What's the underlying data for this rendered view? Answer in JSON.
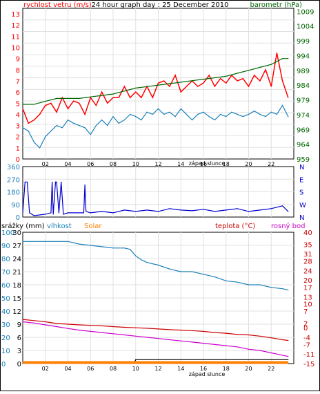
{
  "colors": {
    "wind": "#ff0000",
    "pressure": "#006600",
    "title": "#000000",
    "temp_blue": "#1a7fb8",
    "direction": "#0000cc",
    "rain": "#000000",
    "humidity": "#1a7fb8",
    "solar": "#ff8000",
    "temperature": "#cc0000",
    "dewpoint": "#cc00cc",
    "grid": "#e0e0e0",
    "frame": "#000000"
  },
  "hours": [
    "02",
    "04",
    "06",
    "08",
    "10",
    "12",
    "14",
    "16",
    "18",
    "20",
    "22"
  ],
  "sunset_label": "západ slunce",
  "chart_data": [
    {
      "type": "line",
      "title": "24 hour graph day : 25 December 2010",
      "left_label": "rychlost vetru (m/s)",
      "right_label": "barometr (hPa)",
      "left_ticks": [
        "0",
        "1",
        "2",
        "3",
        "4",
        "5",
        "6",
        "7",
        "8",
        "9",
        "10",
        "11",
        "12",
        "13"
      ],
      "right_ticks": [
        "959",
        "964",
        "969",
        "974",
        "979",
        "984",
        "989",
        "994",
        "999",
        "1004",
        "1009"
      ],
      "ylim_left": [
        0,
        13.5
      ],
      "ylim_right": [
        959,
        1010
      ],
      "xlim": [
        0,
        24
      ],
      "series": [
        {
          "name": "rychlost vetru (m/s)",
          "axis": "left",
          "color": "wind",
          "x": [
            0,
            0.5,
            1,
            1.5,
            2,
            2.5,
            3,
            3.5,
            4,
            4.5,
            5,
            5.5,
            6,
            6.5,
            7,
            7.5,
            8,
            8.5,
            9,
            9.5,
            10,
            10.5,
            11,
            11.5,
            12,
            12.5,
            13,
            13.5,
            14,
            14.5,
            15,
            15.5,
            16,
            16.5,
            17,
            17.5,
            18,
            18.5,
            19,
            19.5,
            20,
            20.5,
            21,
            21.5,
            22,
            22.5,
            23,
            23.5
          ],
          "values": [
            4.5,
            3.2,
            3.5,
            4.0,
            4.8,
            5.0,
            4.2,
            5.5,
            4.5,
            5.2,
            5.0,
            4.0,
            5.5,
            4.8,
            6.0,
            5.0,
            5.5,
            5.5,
            6.5,
            5.5,
            6.0,
            5.5,
            6.5,
            5.5,
            6.8,
            7.0,
            6.5,
            7.5,
            6.0,
            6.5,
            7.0,
            6.5,
            6.8,
            7.5,
            6.5,
            7.2,
            6.8,
            7.5,
            7.0,
            7.2,
            6.5,
            7.5,
            7.0,
            8.0,
            6.5,
            9.5,
            7.0,
            5.5
          ]
        },
        {
          "name": "",
          "axis": "left",
          "color": "temp_blue",
          "x": [
            0,
            0.5,
            1,
            1.5,
            2,
            2.5,
            3,
            3.5,
            4,
            4.5,
            5,
            5.5,
            6,
            6.5,
            7,
            7.5,
            8,
            8.5,
            9,
            9.5,
            10,
            10.5,
            11,
            11.5,
            12,
            12.5,
            13,
            13.5,
            14,
            14.5,
            15,
            15.5,
            16,
            16.5,
            17,
            17.5,
            18,
            18.5,
            19,
            19.5,
            20,
            20.5,
            21,
            21.5,
            22,
            22.5,
            23,
            23.5
          ],
          "values": [
            2.8,
            2.5,
            1.5,
            1.0,
            2.0,
            2.5,
            3.0,
            2.8,
            3.5,
            3.2,
            3.0,
            2.8,
            2.2,
            3.0,
            3.5,
            3.0,
            3.8,
            3.2,
            3.5,
            4.0,
            3.8,
            3.5,
            4.2,
            4.0,
            4.5,
            4.0,
            4.2,
            3.8,
            4.5,
            4.0,
            3.5,
            4.0,
            4.2,
            3.8,
            3.5,
            4.0,
            3.8,
            4.2,
            4.0,
            3.8,
            4.0,
            4.3,
            4.0,
            3.8,
            4.2,
            4.0,
            4.8,
            3.8
          ]
        },
        {
          "name": "barometr (hPa)",
          "axis": "right",
          "color": "pressure",
          "x": [
            0,
            1,
            2,
            3,
            4,
            5,
            6,
            7,
            8,
            9,
            10,
            11,
            12,
            13,
            14,
            15,
            16,
            17,
            18,
            19,
            20,
            21,
            22,
            23,
            23.5
          ],
          "values": [
            977.5,
            977.5,
            978.5,
            979.5,
            979.5,
            979.5,
            980,
            980.5,
            981,
            982,
            983,
            983.5,
            984,
            984.5,
            985,
            985.5,
            986,
            986.5,
            987,
            988,
            989,
            990,
            991,
            993,
            993
          ]
        }
      ]
    },
    {
      "type": "line",
      "left_ticks": [
        "0",
        "90",
        "180",
        "270",
        "360"
      ],
      "right_ticks": [
        "N",
        "W",
        "S",
        "E",
        "N"
      ],
      "ylim": [
        0,
        360
      ],
      "xlim": [
        0,
        24
      ],
      "series": [
        {
          "name": "",
          "color": "direction",
          "x": [
            0,
            0.2,
            0.4,
            0.6,
            0.8,
            1,
            2,
            2.5,
            2.6,
            2.7,
            2.9,
            3.0,
            3.2,
            3.4,
            3.6,
            4,
            5,
            5.4,
            5.5,
            5.6,
            6,
            7,
            8,
            9,
            10,
            11,
            12,
            13,
            14,
            15,
            16,
            17,
            18,
            19,
            20,
            21,
            22,
            23,
            23.5
          ],
          "values": [
            30,
            250,
            250,
            30,
            20,
            10,
            20,
            30,
            250,
            20,
            250,
            250,
            30,
            250,
            20,
            30,
            30,
            30,
            230,
            40,
            30,
            40,
            30,
            50,
            40,
            50,
            40,
            60,
            50,
            45,
            55,
            40,
            50,
            60,
            40,
            50,
            60,
            80,
            40
          ]
        }
      ]
    },
    {
      "type": "line",
      "labels": [
        "srážky (mm)",
        "vlhkost",
        "Solar",
        "teplota (°C)",
        "rosný bod"
      ],
      "left_ticks_rain": [
        "0",
        "10",
        "20",
        "30",
        "40",
        "50",
        "60",
        "70",
        "80",
        "90",
        "100"
      ],
      "left_ticks_hum": [
        "0",
        "3",
        "6",
        "9",
        "12",
        "15",
        "18",
        "21",
        "24",
        "27",
        "30"
      ],
      "right_ticks": [
        "-15",
        "-11",
        "-7",
        "-4",
        "0",
        "2",
        "7",
        "10",
        "13",
        "17",
        "20",
        "24",
        "28",
        "31",
        "35",
        "40"
      ],
      "ylim_rain": [
        0,
        100
      ],
      "ylim_temp": [
        -15,
        40
      ],
      "xlim": [
        0,
        24
      ],
      "series": [
        {
          "name": "vlhkost",
          "axis": "rain",
          "color": "humidity",
          "x": [
            0,
            2,
            4,
            5,
            6,
            7,
            8,
            9,
            9.5,
            10,
            10.5,
            11,
            12,
            13,
            14,
            15,
            16,
            17,
            18,
            19,
            20,
            21,
            22,
            23,
            23.5
          ],
          "values": [
            93,
            93,
            93,
            91,
            90,
            89,
            88,
            88,
            87,
            82,
            79,
            77,
            75,
            72,
            70,
            70,
            68,
            66,
            63,
            62,
            60,
            60,
            58,
            57,
            56
          ]
        },
        {
          "name": "teplota (°C)",
          "axis": "temp",
          "color": "temperature",
          "x": [
            0,
            1,
            2,
            3,
            4,
            5,
            6,
            7,
            8,
            9,
            10,
            11,
            12,
            13,
            14,
            15,
            16,
            17,
            18,
            19,
            20,
            21,
            22,
            23,
            23.5
          ],
          "values": [
            3.5,
            3.0,
            2.5,
            1.8,
            1.5,
            1.2,
            1.0,
            0.8,
            0.5,
            0.2,
            0,
            -0.2,
            -0.5,
            -0.8,
            -1.0,
            -1.2,
            -1.5,
            -2.0,
            -2.3,
            -2.8,
            -3.0,
            -3.5,
            -4.2,
            -5.0,
            -5.3
          ]
        },
        {
          "name": "rosný bod",
          "axis": "temp",
          "color": "dewpoint",
          "x": [
            0,
            1,
            2,
            3,
            4,
            5,
            6,
            7,
            8,
            9,
            10,
            11,
            12,
            13,
            14,
            15,
            16,
            17,
            18,
            19,
            20,
            21,
            22,
            23,
            23.5
          ],
          "values": [
            2.5,
            2.0,
            1.2,
            0.5,
            -0.3,
            -1.0,
            -1.5,
            -2.0,
            -2.5,
            -3.0,
            -3.5,
            -4.0,
            -4.5,
            -5.0,
            -5.5,
            -6.0,
            -6.5,
            -7.0,
            -7.5,
            -8.0,
            -9.0,
            -9.5,
            -10.5,
            -11.5,
            -12.0
          ]
        },
        {
          "name": "srážky (mm)",
          "axis": "rain",
          "color": "rain",
          "x": [
            0,
            5,
            9.9,
            10,
            23.5
          ],
          "values": [
            1,
            1,
            1,
            3,
            3
          ]
        },
        {
          "name": "Solar",
          "axis": "rain",
          "color": "solar",
          "x": [
            0,
            23.5
          ],
          "values": [
            0.8,
            0.8
          ]
        }
      ]
    }
  ]
}
